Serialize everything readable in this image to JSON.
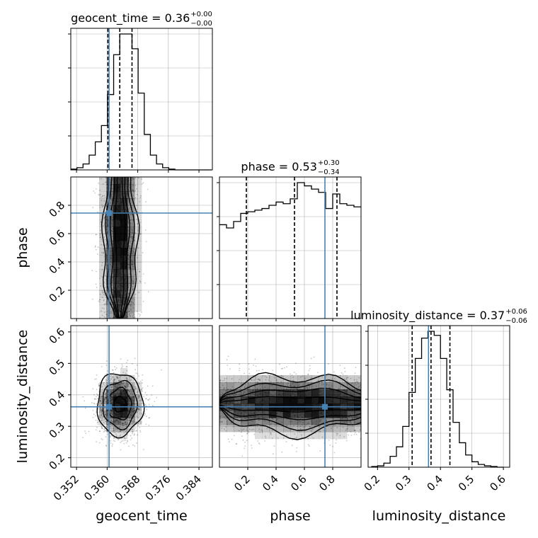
{
  "chart_data": {
    "type": "corner",
    "parameters": [
      "geocent_time",
      "phase",
      "luminosity_distance"
    ],
    "axis_ranges": {
      "geocent_time": [
        0.3505,
        0.3875
      ],
      "phase": [
        0.0,
        1.0
      ],
      "luminosity_distance": [
        0.17,
        0.62
      ]
    },
    "ticks": {
      "geocent_time": [
        "0.352",
        "0.360",
        "0.368",
        "0.376",
        "0.384"
      ],
      "phase": [
        "0.2",
        "0.4",
        "0.6",
        "0.8"
      ],
      "luminosity_distance": [
        "0.2",
        "0.3",
        "0.4",
        "0.5",
        "0.6"
      ]
    },
    "truths": {
      "geocent_time": 0.3605,
      "phase": 0.745,
      "luminosity_distance": 0.362
    },
    "titles": [
      {
        "prefix": "geocent_time = 0.36",
        "sup": "+0.00",
        "sub": "−0.00"
      },
      {
        "prefix": "phase = 0.53",
        "sup": "+0.30",
        "sub": "−0.34"
      },
      {
        "prefix": "luminosity_distance = 0.37",
        "sup": "+0.06",
        "sub": "−0.06"
      }
    ],
    "quantiles": {
      "geocent_time": [
        0.3602,
        0.3633,
        0.3665
      ],
      "phase": [
        0.19,
        0.53,
        0.83
      ],
      "luminosity_distance": [
        0.31,
        0.37,
        0.43
      ]
    },
    "hist1d": {
      "geocent_time": {
        "bins": [
          0.3505,
          0.3521,
          0.3537,
          0.3553,
          0.3569,
          0.3585,
          0.3601,
          0.3617,
          0.3633,
          0.3649,
          0.3665,
          0.3681,
          0.3697,
          0.3713,
          0.3729,
          0.3745,
          0.3761,
          0.3777,
          0.3793,
          0.3809,
          0.3825,
          0.3841,
          0.3857,
          0.3873
        ],
        "counts": [
          0.5,
          1.5,
          4,
          10,
          19,
          30,
          51,
          78,
          92,
          92,
          82,
          52,
          24,
          10,
          4,
          1.5,
          0.5,
          0,
          0,
          0,
          0,
          0,
          0
        ]
      },
      "phase": {
        "bins": [
          0.0,
          0.05,
          0.1,
          0.15,
          0.2,
          0.25,
          0.3,
          0.35,
          0.4,
          0.45,
          0.5,
          0.55,
          0.6,
          0.65,
          0.7,
          0.75,
          0.8,
          0.85,
          0.9,
          0.95,
          1.0
        ],
        "counts": [
          58,
          56,
          60,
          65,
          66,
          67,
          68,
          70,
          72,
          71,
          74,
          84,
          82,
          80,
          78,
          68,
          77,
          71,
          70,
          69
        ]
      },
      "luminosity_distance": {
        "bins": [
          0.18,
          0.2,
          0.22,
          0.24,
          0.26,
          0.28,
          0.3,
          0.32,
          0.34,
          0.36,
          0.38,
          0.4,
          0.42,
          0.44,
          0.46,
          0.48,
          0.5,
          0.52,
          0.54,
          0.56,
          0.58,
          0.6
        ],
        "counts": [
          0.5,
          1,
          3,
          8,
          15,
          30,
          55,
          80,
          95,
          100,
          97,
          80,
          57,
          33,
          18,
          9,
          4,
          2,
          1,
          0.5,
          0
        ]
      }
    },
    "posterior_2d": {
      "geocent_time_vs_phase": {
        "center": [
          0.3633,
          0.55
        ],
        "spread": [
          0.0025,
          0.4
        ]
      },
      "geocent_time_vs_luminosity_distance": {
        "center": [
          0.3633,
          0.37
        ],
        "spread": [
          0.003,
          0.05
        ]
      },
      "phase_vs_luminosity_distance": {
        "center": [
          0.55,
          0.37
        ],
        "spread": [
          0.45,
          0.05
        ]
      }
    },
    "colors": {
      "truth": "#4682b4",
      "hist": "#000000",
      "density": "#000000",
      "grid": "#b0b0b0"
    },
    "grid": true
  }
}
